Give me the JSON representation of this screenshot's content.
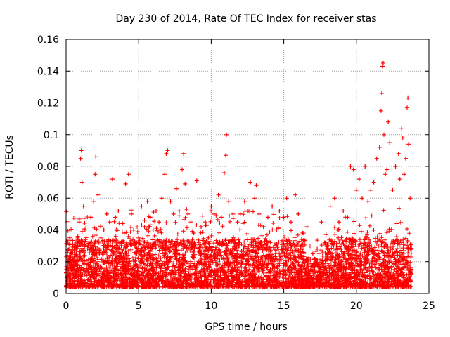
{
  "chart_data": {
    "type": "scatter",
    "title": "Day 230 of 2014, Rate Of TEC Index for receiver stas",
    "xlabel": "GPS time / hours",
    "ylabel": "ROTI / TECUs",
    "xlim": [
      0,
      25
    ],
    "ylim": [
      0,
      0.16
    ],
    "xticks": [
      0,
      5,
      10,
      15,
      20,
      25
    ],
    "xtick_labels": [
      "0",
      "5",
      "10",
      "15",
      "20",
      "25"
    ],
    "yticks": [
      0,
      0.02,
      0.04,
      0.06,
      0.08,
      0.1,
      0.12,
      0.14,
      0.16
    ],
    "ytick_labels": [
      "0",
      "0.02",
      "0.04",
      "0.06",
      "0.08",
      "0.1",
      "0.12",
      "0.14",
      "0.16"
    ],
    "grid": true,
    "marker": "+",
    "color": "#ff0000",
    "series": [
      {
        "name": "ROTI",
        "points": [
          [
            0.0,
            0.013
          ],
          [
            0.1,
            0.018
          ],
          [
            0.2,
            0.022
          ],
          [
            0.3,
            0.016
          ],
          [
            0.4,
            0.027
          ],
          [
            0.5,
            0.012
          ],
          [
            0.6,
            0.03
          ],
          [
            0.7,
            0.02
          ],
          [
            0.8,
            0.035
          ],
          [
            0.9,
            0.045
          ],
          [
            1.0,
            0.085
          ],
          [
            1.05,
            0.09
          ],
          [
            1.1,
            0.07
          ],
          [
            1.2,
            0.055
          ],
          [
            1.3,
            0.04
          ],
          [
            1.5,
            0.03
          ],
          [
            1.7,
            0.048
          ],
          [
            1.9,
            0.058
          ],
          [
            2.0,
            0.075
          ],
          [
            2.05,
            0.086
          ],
          [
            2.2,
            0.062
          ],
          [
            2.4,
            0.035
          ],
          [
            2.6,
            0.04
          ],
          [
            2.8,
            0.05
          ],
          [
            3.0,
            0.045
          ],
          [
            3.2,
            0.072
          ],
          [
            3.4,
            0.048
          ],
          [
            3.6,
            0.052
          ],
          [
            3.8,
            0.032
          ],
          [
            4.0,
            0.038
          ],
          [
            4.1,
            0.069
          ],
          [
            4.3,
            0.075
          ],
          [
            4.5,
            0.05
          ],
          [
            4.7,
            0.03
          ],
          [
            5.0,
            0.035
          ],
          [
            5.2,
            0.055
          ],
          [
            5.4,
            0.042
          ],
          [
            5.6,
            0.058
          ],
          [
            5.8,
            0.048
          ],
          [
            6.0,
            0.04
          ],
          [
            6.2,
            0.052
          ],
          [
            6.4,
            0.045
          ],
          [
            6.6,
            0.06
          ],
          [
            6.8,
            0.075
          ],
          [
            6.9,
            0.088
          ],
          [
            7.0,
            0.09
          ],
          [
            7.2,
            0.058
          ],
          [
            7.4,
            0.05
          ],
          [
            7.6,
            0.066
          ],
          [
            7.8,
            0.052
          ],
          [
            8.0,
            0.078
          ],
          [
            8.1,
            0.088
          ],
          [
            8.2,
            0.069
          ],
          [
            8.4,
            0.05
          ],
          [
            8.6,
            0.045
          ],
          [
            8.8,
            0.038
          ],
          [
            9.0,
            0.071
          ],
          [
            9.3,
            0.042
          ],
          [
            9.6,
            0.045
          ],
          [
            9.8,
            0.035
          ],
          [
            10.0,
            0.055
          ],
          [
            10.2,
            0.05
          ],
          [
            10.5,
            0.062
          ],
          [
            10.7,
            0.048
          ],
          [
            10.9,
            0.076
          ],
          [
            11.0,
            0.087
          ],
          [
            11.05,
            0.1
          ],
          [
            11.2,
            0.058
          ],
          [
            11.5,
            0.05
          ],
          [
            11.8,
            0.045
          ],
          [
            12.0,
            0.05
          ],
          [
            12.3,
            0.058
          ],
          [
            12.5,
            0.052
          ],
          [
            12.7,
            0.07
          ],
          [
            13.0,
            0.06
          ],
          [
            13.1,
            0.068
          ],
          [
            13.3,
            0.05
          ],
          [
            13.6,
            0.042
          ],
          [
            13.9,
            0.048
          ],
          [
            14.2,
            0.055
          ],
          [
            14.5,
            0.04
          ],
          [
            14.7,
            0.052
          ],
          [
            15.0,
            0.048
          ],
          [
            15.2,
            0.06
          ],
          [
            15.5,
            0.045
          ],
          [
            15.8,
            0.062
          ],
          [
            16.0,
            0.05
          ],
          [
            16.3,
            0.038
          ],
          [
            16.6,
            0.042
          ],
          [
            17.0,
            0.025
          ],
          [
            17.3,
            0.028
          ],
          [
            17.6,
            0.045
          ],
          [
            17.9,
            0.032
          ],
          [
            18.2,
            0.055
          ],
          [
            18.5,
            0.06
          ],
          [
            18.8,
            0.045
          ],
          [
            19.1,
            0.052
          ],
          [
            19.4,
            0.048
          ],
          [
            19.6,
            0.08
          ],
          [
            19.8,
            0.078
          ],
          [
            20.0,
            0.065
          ],
          [
            20.2,
            0.072
          ],
          [
            20.4,
            0.06
          ],
          [
            20.6,
            0.08
          ],
          [
            20.8,
            0.058
          ],
          [
            21.0,
            0.065
          ],
          [
            21.2,
            0.07
          ],
          [
            21.4,
            0.085
          ],
          [
            21.6,
            0.092
          ],
          [
            21.7,
            0.115
          ],
          [
            21.75,
            0.126
          ],
          [
            21.8,
            0.143
          ],
          [
            21.85,
            0.145
          ],
          [
            21.9,
            0.1
          ],
          [
            22.0,
            0.075
          ],
          [
            22.1,
            0.078
          ],
          [
            22.2,
            0.108
          ],
          [
            22.3,
            0.095
          ],
          [
            22.5,
            0.065
          ],
          [
            22.7,
            0.08
          ],
          [
            22.9,
            0.088
          ],
          [
            23.0,
            0.072
          ],
          [
            23.1,
            0.104
          ],
          [
            23.2,
            0.098
          ],
          [
            23.3,
            0.075
          ],
          [
            23.4,
            0.085
          ],
          [
            23.5,
            0.117
          ],
          [
            23.55,
            0.123
          ],
          [
            23.6,
            0.094
          ],
          [
            23.7,
            0.06
          ]
        ]
      }
    ]
  }
}
